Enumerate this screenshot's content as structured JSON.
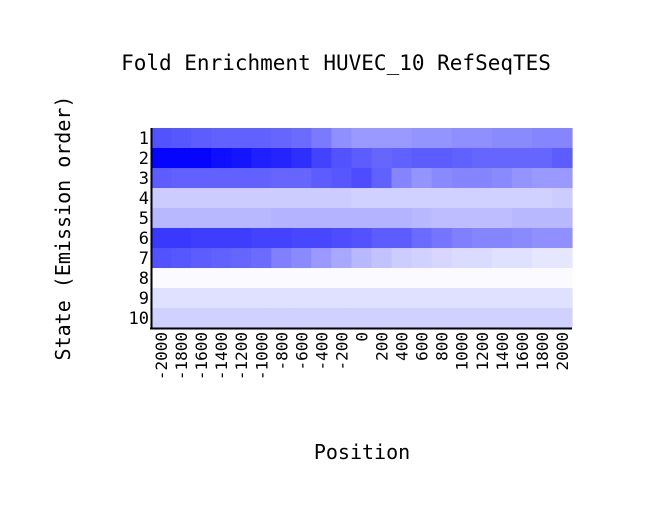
{
  "chart_data": {
    "type": "heatmap",
    "title": "Fold Enrichment HUVEC_10 RefSeqTES",
    "xlabel": "Position",
    "ylabel": "State (Emission order)",
    "x": [
      "-2000",
      "-1800",
      "-1600",
      "-1400",
      "-1200",
      "-1000",
      "-800",
      "-600",
      "-400",
      "-200",
      "0",
      "200",
      "400",
      "600",
      "800",
      "1000",
      "1200",
      "1400",
      "1600",
      "1800",
      "2000"
    ],
    "y": [
      "1",
      "2",
      "3",
      "4",
      "5",
      "6",
      "7",
      "8",
      "9",
      "10"
    ],
    "color_scale": {
      "low": "#ffffff",
      "high": "#0000ff",
      "min": 0,
      "max": 1
    },
    "values": [
      [
        0.68,
        0.66,
        0.64,
        0.62,
        0.62,
        0.62,
        0.6,
        0.58,
        0.52,
        0.44,
        0.4,
        0.4,
        0.4,
        0.42,
        0.42,
        0.44,
        0.44,
        0.46,
        0.46,
        0.48,
        0.48
      ],
      [
        0.98,
        0.98,
        0.98,
        0.94,
        0.92,
        0.88,
        0.86,
        0.82,
        0.74,
        0.68,
        0.64,
        0.6,
        0.62,
        0.64,
        0.64,
        0.62,
        0.6,
        0.6,
        0.6,
        0.6,
        0.64
      ],
      [
        0.64,
        0.62,
        0.62,
        0.62,
        0.62,
        0.62,
        0.6,
        0.6,
        0.64,
        0.66,
        0.7,
        0.62,
        0.48,
        0.42,
        0.46,
        0.48,
        0.48,
        0.46,
        0.42,
        0.4,
        0.4
      ],
      [
        0.2,
        0.2,
        0.2,
        0.2,
        0.2,
        0.2,
        0.2,
        0.2,
        0.2,
        0.2,
        0.18,
        0.18,
        0.18,
        0.18,
        0.18,
        0.18,
        0.18,
        0.18,
        0.18,
        0.18,
        0.2
      ],
      [
        0.28,
        0.28,
        0.28,
        0.28,
        0.28,
        0.28,
        0.3,
        0.3,
        0.3,
        0.3,
        0.3,
        0.3,
        0.3,
        0.28,
        0.26,
        0.26,
        0.26,
        0.26,
        0.28,
        0.28,
        0.28
      ],
      [
        0.78,
        0.78,
        0.76,
        0.76,
        0.76,
        0.74,
        0.74,
        0.72,
        0.72,
        0.7,
        0.68,
        0.64,
        0.64,
        0.58,
        0.54,
        0.5,
        0.48,
        0.48,
        0.46,
        0.44,
        0.44
      ],
      [
        0.68,
        0.66,
        0.64,
        0.62,
        0.6,
        0.58,
        0.5,
        0.46,
        0.4,
        0.34,
        0.28,
        0.24,
        0.2,
        0.18,
        0.16,
        0.14,
        0.14,
        0.12,
        0.12,
        0.1,
        0.1
      ],
      [
        0.02,
        0.02,
        0.02,
        0.02,
        0.02,
        0.02,
        0.02,
        0.02,
        0.02,
        0.02,
        0.02,
        0.02,
        0.02,
        0.02,
        0.02,
        0.02,
        0.02,
        0.02,
        0.02,
        0.02,
        0.02
      ],
      [
        0.12,
        0.12,
        0.12,
        0.12,
        0.12,
        0.12,
        0.12,
        0.12,
        0.12,
        0.12,
        0.12,
        0.12,
        0.12,
        0.12,
        0.12,
        0.12,
        0.12,
        0.12,
        0.12,
        0.12,
        0.12
      ],
      [
        0.18,
        0.18,
        0.18,
        0.18,
        0.18,
        0.18,
        0.18,
        0.18,
        0.18,
        0.18,
        0.18,
        0.18,
        0.18,
        0.18,
        0.18,
        0.18,
        0.18,
        0.18,
        0.18,
        0.18,
        0.18
      ]
    ],
    "legend": "none",
    "grid": false
  }
}
